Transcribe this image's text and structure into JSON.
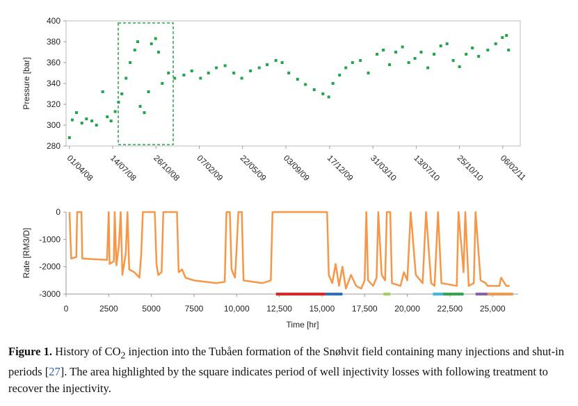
{
  "chart_data": [
    {
      "type": "scatter",
      "y_label": "Pressure [bar]",
      "color": "#22a64a",
      "xlim": [
        "2008-03-24",
        "2011-03-20"
      ],
      "ylim": [
        280,
        400
      ],
      "yticks": [
        280,
        300,
        320,
        340,
        360,
        380,
        400
      ],
      "xticks": [
        {
          "value": "2008-04-01",
          "label": "01/04/08"
        },
        {
          "value": "2008-07-14",
          "label": "14/07/08"
        },
        {
          "value": "2008-10-26",
          "label": "26/10/08"
        },
        {
          "value": "2009-02-07",
          "label": "07/02/09"
        },
        {
          "value": "2009-05-22",
          "label": "22/05/09"
        },
        {
          "value": "2009-09-03",
          "label": "03/09/09"
        },
        {
          "value": "2009-12-17",
          "label": "17/12/09"
        },
        {
          "value": "2010-03-31",
          "label": "31/03/10"
        },
        {
          "value": "2010-07-13",
          "label": "13/07/10"
        },
        {
          "value": "2010-10-25",
          "label": "25/10/10"
        },
        {
          "value": "2011-02-06",
          "label": "06/02/11"
        }
      ],
      "x": [
        "2008-04-01",
        "2008-04-08",
        "2008-04-18",
        "2008-05-01",
        "2008-05-12",
        "2008-05-25",
        "2008-06-05",
        "2008-06-20",
        "2008-07-01",
        "2008-07-10",
        "2008-07-20",
        "2008-07-28",
        "2008-08-05",
        "2008-08-15",
        "2008-08-25",
        "2008-09-05",
        "2008-09-12",
        "2008-09-18",
        "2008-09-28",
        "2008-10-08",
        "2008-10-15",
        "2008-10-25",
        "2008-11-01",
        "2008-11-10",
        "2008-11-25",
        "2008-12-10",
        "2009-01-01",
        "2009-01-20",
        "2009-02-10",
        "2009-03-01",
        "2009-03-20",
        "2009-04-10",
        "2009-05-01",
        "2009-05-20",
        "2009-06-10",
        "2009-07-01",
        "2009-07-20",
        "2009-08-10",
        "2009-08-25",
        "2009-09-10",
        "2009-10-01",
        "2009-10-20",
        "2009-11-10",
        "2009-12-01",
        "2009-12-15",
        "2009-12-25",
        "2010-01-10",
        "2010-01-25",
        "2010-02-10",
        "2010-03-01",
        "2010-03-20",
        "2010-04-10",
        "2010-04-25",
        "2010-05-10",
        "2010-05-25",
        "2010-06-10",
        "2010-06-25",
        "2010-07-10",
        "2010-07-25",
        "2010-08-10",
        "2010-08-25",
        "2010-09-10",
        "2010-09-25",
        "2010-10-10",
        "2010-10-25",
        "2010-11-10",
        "2010-11-25",
        "2010-12-10",
        "2011-01-01",
        "2011-01-20",
        "2011-02-05",
        "2011-02-15",
        "2011-02-20"
      ],
      "values": [
        288,
        305,
        312,
        302,
        306,
        304,
        300,
        332,
        308,
        304,
        313,
        322,
        330,
        345,
        360,
        372,
        380,
        318,
        312,
        332,
        378,
        383,
        370,
        340,
        350,
        345,
        348,
        352,
        345,
        350,
        355,
        357,
        350,
        345,
        352,
        355,
        358,
        362,
        360,
        350,
        344,
        339,
        334,
        330,
        327,
        340,
        348,
        355,
        360,
        362,
        350,
        368,
        372,
        358,
        370,
        375,
        360,
        364,
        370,
        355,
        368,
        376,
        378,
        362,
        356,
        368,
        374,
        366,
        372,
        378,
        384,
        386,
        372
      ]
    },
    {
      "type": "line",
      "x_label": "Time [hr]",
      "y_label": "Rate [RM3/D]",
      "color": "#f79646",
      "xlim": [
        0,
        26500
      ],
      "ylim": [
        -3000,
        0
      ],
      "yticks": [
        -3000,
        -2000,
        -1000,
        0
      ],
      "xticks": [
        0,
        2500,
        5000,
        7500,
        {
          "value": 10000,
          "label": "10,000"
        },
        {
          "value": 12500,
          "label": "12,500"
        },
        {
          "value": 15000,
          "label": "15,000"
        },
        {
          "value": 17500,
          "label": "17,500"
        },
        {
          "value": 20000,
          "label": "20,000"
        },
        {
          "value": 22500,
          "label": "22,500"
        },
        {
          "value": 25000,
          "label": "25,000"
        }
      ],
      "x": [
        200,
        300,
        600,
        650,
        900,
        950,
        2400,
        2500,
        2550,
        2800,
        2850,
        2950,
        3100,
        3200,
        3300,
        3500,
        3600,
        3700,
        4000,
        4300,
        4400,
        4500,
        5200,
        5300,
        5400,
        5600,
        5700,
        6500,
        6600,
        6800,
        7000,
        7500,
        8800,
        9300,
        9400,
        9600,
        9700,
        9900,
        10000,
        10100,
        10300,
        10400,
        11500,
        12000,
        12100,
        15300,
        15400,
        15600,
        15800,
        16000,
        16200,
        16400,
        16700,
        17000,
        17300,
        17500,
        17600,
        17700,
        18000,
        18200,
        18300,
        18500,
        18700,
        18800,
        19000,
        19100,
        19600,
        19800,
        20000,
        20200,
        20500,
        20900,
        21100,
        21400,
        21600,
        21800,
        22000,
        22900,
        23000,
        23300,
        23400,
        23600,
        23900,
        24000,
        24300,
        24600,
        24700,
        25400,
        25500,
        25800,
        26000
      ],
      "values": [
        0,
        -1700,
        -1650,
        0,
        0,
        -1700,
        -1750,
        0,
        -1900,
        -1800,
        0,
        -1950,
        -1200,
        0,
        -2300,
        -1500,
        0,
        -2100,
        -2200,
        -2400,
        -1600,
        0,
        0,
        -1900,
        -2300,
        -2200,
        0,
        0,
        -2200,
        -2100,
        -2400,
        -2500,
        -2600,
        -2550,
        0,
        0,
        -2100,
        -2400,
        -1300,
        0,
        0,
        -2500,
        -2600,
        -2500,
        0,
        0,
        -2300,
        -2600,
        -1900,
        -2700,
        -2000,
        -2800,
        -2300,
        -2700,
        -2800,
        -2500,
        0,
        -2500,
        -2700,
        -2400,
        0,
        -2300,
        -2500,
        0,
        0,
        -2600,
        -2700,
        -2200,
        -2500,
        0,
        -2300,
        -2600,
        0,
        -2600,
        -2700,
        0,
        -2600,
        -2700,
        0,
        -2200,
        0,
        -2700,
        -2600,
        0,
        -2500,
        -2600,
        -2700,
        -2700,
        -2400,
        -2700,
        -2700
      ],
      "periods": [
        {
          "start": 12300,
          "end": 15200,
          "color": "#e82020"
        },
        {
          "start": 15200,
          "end": 16200,
          "color": "#2a6fc0"
        },
        {
          "start": 18600,
          "end": 19000,
          "color": "#9bd35a"
        },
        {
          "start": 21500,
          "end": 22100,
          "color": "#3ab6e8"
        },
        {
          "start": 22100,
          "end": 23300,
          "color": "#2ea84a"
        },
        {
          "start": 24000,
          "end": 24700,
          "color": "#8a5fb3"
        },
        {
          "start": 24700,
          "end": 26200,
          "color": "#f79646"
        }
      ]
    }
  ],
  "caption": {
    "label": "Figure 1.",
    "text_1": "History of CO",
    "subscript": "2",
    "text_2": " injection into the Tubåen formation of the Snøhvit field containing many injections and shut-in periods [",
    "reference": "27",
    "text_3": "].  The area highlighted by the square indicates period of well injectivity losses with following treatment to recover the injectivity."
  }
}
